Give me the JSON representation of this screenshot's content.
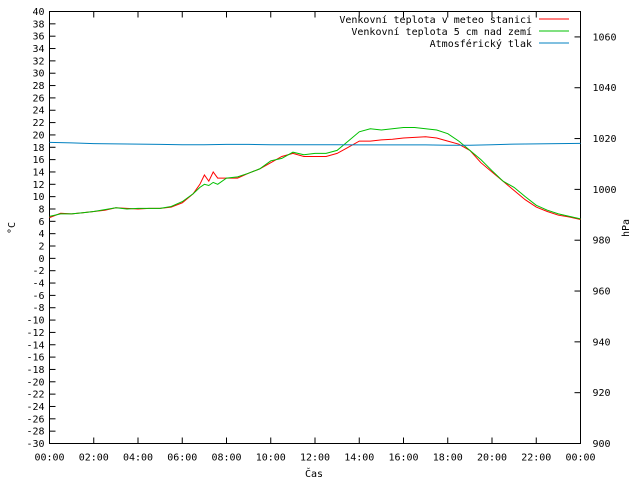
{
  "chart_data": {
    "type": "line",
    "xlabel": "Čas",
    "ylabel_left": "°C",
    "ylabel_right": "hPa",
    "x_ticks": [
      "00:00",
      "02:00",
      "04:00",
      "06:00",
      "08:00",
      "10:00",
      "12:00",
      "14:00",
      "16:00",
      "18:00",
      "20:00",
      "22:00",
      "00:00"
    ],
    "x_range_hours": [
      0,
      24
    ],
    "y_left_range": [
      -30,
      40
    ],
    "y_left_ticks": [
      40,
      38,
      36,
      34,
      32,
      30,
      28,
      26,
      24,
      22,
      20,
      18,
      16,
      14,
      12,
      10,
      8,
      6,
      4,
      2,
      0,
      -2,
      -4,
      -6,
      -8,
      -10,
      -12,
      -14,
      -16,
      -18,
      -20,
      -22,
      -24,
      -26,
      -28,
      -30
    ],
    "y_right_range": [
      900,
      1070
    ],
    "y_right_ticks": [
      1060,
      1040,
      1020,
      1000,
      980,
      960,
      940,
      920,
      900
    ],
    "grid": false,
    "legend_position": "top-right",
    "series": [
      {
        "name": "Venkovní teplota v meteo stanici",
        "color": "#ff0000",
        "axis": "left",
        "points": [
          [
            0,
            6.6
          ],
          [
            0.5,
            7.3
          ],
          [
            1,
            7.2
          ],
          [
            1.5,
            7.4
          ],
          [
            2,
            7.6
          ],
          [
            2.5,
            7.8
          ],
          [
            3,
            8.2
          ],
          [
            3.5,
            8.1
          ],
          [
            4,
            8.0
          ],
          [
            4.5,
            8.1
          ],
          [
            5,
            8.1
          ],
          [
            5.5,
            8.3
          ],
          [
            6,
            9.0
          ],
          [
            6.5,
            10.5
          ],
          [
            6.8,
            12.0
          ],
          [
            7.0,
            13.5
          ],
          [
            7.2,
            12.5
          ],
          [
            7.4,
            14.0
          ],
          [
            7.6,
            13.0
          ],
          [
            8,
            13.0
          ],
          [
            8.5,
            13.0
          ],
          [
            9,
            13.8
          ],
          [
            9.5,
            14.5
          ],
          [
            10,
            15.5
          ],
          [
            10.5,
            16.5
          ],
          [
            11,
            17.0
          ],
          [
            11.5,
            16.5
          ],
          [
            12,
            16.5
          ],
          [
            12.5,
            16.5
          ],
          [
            13,
            17.0
          ],
          [
            13.5,
            18.0
          ],
          [
            14,
            19.0
          ],
          [
            14.5,
            19.0
          ],
          [
            15,
            19.2
          ],
          [
            15.5,
            19.3
          ],
          [
            16,
            19.5
          ],
          [
            16.5,
            19.6
          ],
          [
            17,
            19.7
          ],
          [
            17.5,
            19.5
          ],
          [
            18,
            19.0
          ],
          [
            18.5,
            18.5
          ],
          [
            19,
            17.5
          ],
          [
            19.5,
            15.5
          ],
          [
            20,
            14.0
          ],
          [
            20.5,
            12.5
          ],
          [
            21,
            11.0
          ],
          [
            21.5,
            9.5
          ],
          [
            22,
            8.3
          ],
          [
            22.5,
            7.6
          ],
          [
            23,
            7.0
          ],
          [
            23.5,
            6.7
          ],
          [
            24,
            6.3
          ]
        ]
      },
      {
        "name": "Venkovní teplota 5 cm nad zemí",
        "color": "#00c000",
        "axis": "left",
        "points": [
          [
            0,
            6.8
          ],
          [
            0.5,
            7.2
          ],
          [
            1,
            7.2
          ],
          [
            1.5,
            7.4
          ],
          [
            2,
            7.6
          ],
          [
            2.5,
            7.9
          ],
          [
            3,
            8.2
          ],
          [
            3.5,
            8.0
          ],
          [
            4,
            8.1
          ],
          [
            4.5,
            8.1
          ],
          [
            5,
            8.1
          ],
          [
            5.5,
            8.4
          ],
          [
            6,
            9.2
          ],
          [
            6.5,
            10.5
          ],
          [
            6.8,
            11.5
          ],
          [
            7.0,
            12.0
          ],
          [
            7.2,
            11.8
          ],
          [
            7.4,
            12.3
          ],
          [
            7.6,
            12.0
          ],
          [
            8,
            13.0
          ],
          [
            8.5,
            13.2
          ],
          [
            9,
            13.8
          ],
          [
            9.5,
            14.5
          ],
          [
            10,
            15.8
          ],
          [
            10.5,
            16.2
          ],
          [
            11,
            17.2
          ],
          [
            11.5,
            16.8
          ],
          [
            12,
            17.0
          ],
          [
            12.5,
            17.0
          ],
          [
            13,
            17.5
          ],
          [
            13.5,
            19.0
          ],
          [
            14,
            20.5
          ],
          [
            14.5,
            21.0
          ],
          [
            15,
            20.8
          ],
          [
            15.5,
            21.0
          ],
          [
            16,
            21.2
          ],
          [
            16.5,
            21.2
          ],
          [
            17,
            21.0
          ],
          [
            17.5,
            20.8
          ],
          [
            18,
            20.2
          ],
          [
            18.5,
            19.0
          ],
          [
            19,
            17.5
          ],
          [
            19.5,
            16.0
          ],
          [
            20,
            14.2
          ],
          [
            20.5,
            12.5
          ],
          [
            21,
            11.5
          ],
          [
            21.5,
            10.0
          ],
          [
            22,
            8.6
          ],
          [
            22.5,
            7.8
          ],
          [
            23,
            7.2
          ],
          [
            23.5,
            6.8
          ],
          [
            24,
            6.4
          ]
        ]
      },
      {
        "name": "Atmosférický tlak",
        "color": "#0080c0",
        "axis": "right",
        "points": [
          [
            0,
            1018.5
          ],
          [
            1,
            1018.3
          ],
          [
            2,
            1018.0
          ],
          [
            3,
            1017.9
          ],
          [
            4,
            1017.8
          ],
          [
            5,
            1017.7
          ],
          [
            6,
            1017.6
          ],
          [
            7,
            1017.6
          ],
          [
            8,
            1017.7
          ],
          [
            9,
            1017.7
          ],
          [
            10,
            1017.6
          ],
          [
            11,
            1017.6
          ],
          [
            12,
            1017.6
          ],
          [
            13,
            1017.6
          ],
          [
            14,
            1017.5
          ],
          [
            15,
            1017.5
          ],
          [
            16,
            1017.5
          ],
          [
            17,
            1017.5
          ],
          [
            18,
            1017.4
          ],
          [
            19,
            1017.4
          ],
          [
            20,
            1017.6
          ],
          [
            21,
            1017.8
          ],
          [
            22,
            1017.9
          ],
          [
            23,
            1018.0
          ],
          [
            24,
            1018.1
          ]
        ]
      }
    ]
  }
}
